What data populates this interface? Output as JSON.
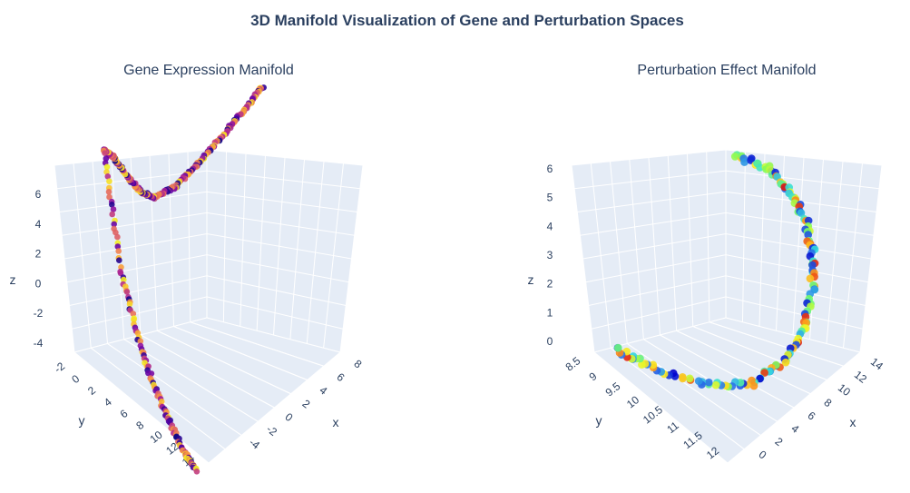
{
  "title": "3D Manifold Visualization of Gene and Perturbation Spaces",
  "chart_data": [
    {
      "type": "scatter3d",
      "title": "Gene Expression Manifold",
      "xlabel": "x",
      "ylabel": "y",
      "zlabel": "z",
      "x_ticks": [
        "-4",
        "-2",
        "0",
        "2",
        "4",
        "6",
        "8"
      ],
      "y_ticks": [
        "-2",
        "0",
        "2",
        "4",
        "6",
        "8",
        "10",
        "12",
        "14"
      ],
      "z_ticks": [
        "6",
        "4",
        "2",
        "0",
        "-2",
        "-4"
      ],
      "colorscale": [
        "#0d0887",
        "#5c01a6",
        "#9c179e",
        "#cc4778",
        "#ed7953",
        "#fdb42f",
        "#f0f921"
      ],
      "curve": [
        {
          "x": -4.2,
          "y": 4.5,
          "z": 6.6
        },
        {
          "x": -3.0,
          "y": 4.0,
          "z": 5.8
        },
        {
          "x": -1.5,
          "y": 3.2,
          "z": 4.8
        },
        {
          "x": 0.0,
          "y": 2.4,
          "z": 3.8
        },
        {
          "x": 1.5,
          "y": 1.6,
          "z": 3.0
        },
        {
          "x": 3.0,
          "y": 1.0,
          "z": 2.9
        },
        {
          "x": 4.0,
          "y": 0.6,
          "z": 3.6
        },
        {
          "x": 5.0,
          "y": 0.4,
          "z": 4.8
        },
        {
          "x": 6.0,
          "y": 0.2,
          "z": 6.2
        },
        {
          "x": 6.8,
          "y": 0.0,
          "z": 7.0
        },
        {
          "x": 7.6,
          "y": 3.0,
          "z": 2.0
        },
        {
          "x": 8.0,
          "y": 6.0,
          "z": -1.0
        },
        {
          "x": 8.2,
          "y": 9.0,
          "z": -3.0
        },
        {
          "x": 8.3,
          "y": 11.5,
          "z": -4.2
        },
        {
          "x": 8.4,
          "y": 13.0,
          "z": -4.6
        }
      ]
    },
    {
      "type": "scatter3d",
      "title": "Perturbation Effect Manifold",
      "xlabel": "x",
      "ylabel": "y",
      "zlabel": "z",
      "x_ticks": [
        "0",
        "2",
        "4",
        "6",
        "8",
        "10",
        "12",
        "14"
      ],
      "y_ticks": [
        "8.5",
        "9",
        "9.5",
        "10",
        "10.5",
        "11",
        "11.5",
        "12"
      ],
      "z_ticks": [
        "6",
        "5",
        "4",
        "3",
        "2",
        "1",
        "0"
      ],
      "colorscale": [
        "#0000cc",
        "#2a6fe8",
        "#33dddd",
        "#7cfc5a",
        "#f5f523",
        "#ff9a1a",
        "#dd1111"
      ],
      "curve": [
        {
          "x": 6.0,
          "y": 10.2,
          "z": 6.0
        },
        {
          "x": 4.0,
          "y": 10.6,
          "z": 5.5
        },
        {
          "x": 3.0,
          "y": 10.9,
          "z": 4.8
        },
        {
          "x": 2.5,
          "y": 11.2,
          "z": 4.0
        },
        {
          "x": 2.6,
          "y": 11.4,
          "z": 3.2
        },
        {
          "x": 3.4,
          "y": 11.6,
          "z": 2.4
        },
        {
          "x": 4.8,
          "y": 11.7,
          "z": 1.6
        },
        {
          "x": 6.5,
          "y": 11.6,
          "z": 0.9
        },
        {
          "x": 8.5,
          "y": 11.2,
          "z": 0.3
        },
        {
          "x": 10.5,
          "y": 10.4,
          "z": 0.05
        },
        {
          "x": 12.0,
          "y": 9.4,
          "z": 0.0
        },
        {
          "x": 12.8,
          "y": 8.7,
          "z": 0.05
        }
      ]
    }
  ]
}
